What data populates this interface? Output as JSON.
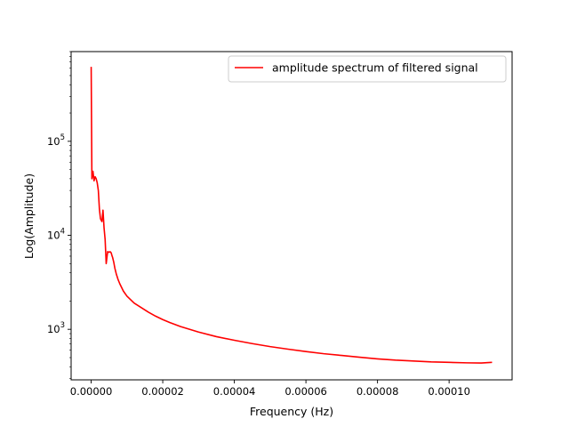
{
  "chart_data": {
    "type": "line",
    "title": "",
    "xlabel": "Frequency (Hz)",
    "ylabel": "Log(Amplitude)",
    "yscale": "log",
    "xlim": [
      -5.6e-06,
      0.0001176
    ],
    "ylim": [
      290,
      900000
    ],
    "grid": false,
    "legend_position": "top-right",
    "x_ticks": [
      {
        "value": 0,
        "label": "0.00000"
      },
      {
        "value": 2e-05,
        "label": "0.00002"
      },
      {
        "value": 4e-05,
        "label": "0.00004"
      },
      {
        "value": 6e-05,
        "label": "0.00006"
      },
      {
        "value": 8e-05,
        "label": "0.00008"
      },
      {
        "value": 0.0001,
        "label": "0.00010"
      }
    ],
    "y_ticks": [
      {
        "value": 1000,
        "base": "10",
        "exp": "3"
      },
      {
        "value": 10000,
        "base": "10",
        "exp": "4"
      },
      {
        "value": 100000,
        "base": "10",
        "exp": "5"
      }
    ],
    "series": [
      {
        "name": "amplitude spectrum of filtered signal",
        "color": "#ff0000",
        "x": [
          0,
          2e-07,
          5e-07,
          8e-07,
          1.1e-06,
          1.4e-06,
          1.7e-06,
          2e-06,
          2.3e-06,
          2.6e-06,
          3e-06,
          3.3e-06,
          3.6e-06,
          3.9e-06,
          4.2e-06,
          4.6e-06,
          5e-06,
          5.3e-06,
          5.6e-06,
          5.8e-06,
          6e-06,
          6.3e-06,
          6.6e-06,
          7e-06,
          7.5e-06,
          8e-06,
          9e-06,
          1e-05,
          1.2e-05,
          1.4e-05,
          1.6e-05,
          1.8e-05,
          2e-05,
          2.2e-05,
          2.5e-05,
          3e-05,
          3.5e-05,
          4e-05,
          4.5e-05,
          5e-05,
          5.5e-05,
          6e-05,
          6.5e-05,
          7e-05,
          7.5e-05,
          8e-05,
          8.5e-05,
          9e-05,
          9.5e-05,
          0.0001,
          0.000105,
          0.000109,
          0.000112
        ],
        "y": [
          620000,
          40000,
          48000,
          38000,
          42000,
          40000,
          36000,
          30000,
          19000,
          15000,
          14000,
          18500,
          12000,
          9000,
          5000,
          6700,
          6600,
          6700,
          6500,
          6100,
          5800,
          5200,
          4500,
          3900,
          3400,
          3050,
          2550,
          2250,
          1900,
          1700,
          1520,
          1380,
          1270,
          1180,
          1070,
          935,
          835,
          765,
          705,
          655,
          615,
          580,
          550,
          527,
          505,
          485,
          470,
          460,
          450,
          445,
          440,
          438,
          445
        ]
      }
    ]
  }
}
